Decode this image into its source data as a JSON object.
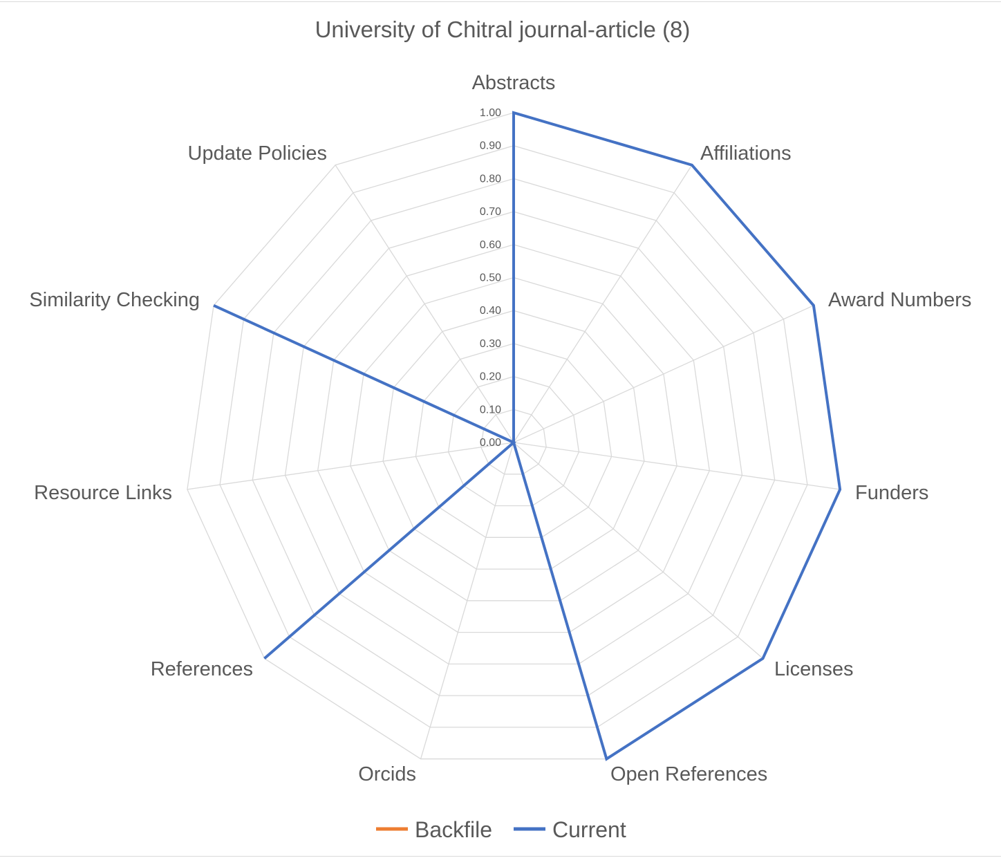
{
  "chart_data": {
    "type": "radar",
    "title": "University of Chitral journal-article (8)",
    "categories": [
      "Abstracts",
      "Affiliations",
      "Award Numbers",
      "Funders",
      "Licenses",
      "Open References",
      "Orcids",
      "References",
      "Resource Links",
      "Similarity Checking",
      "Update Policies"
    ],
    "ticks": [
      "0.00",
      "0.10",
      "0.20",
      "0.30",
      "0.40",
      "0.50",
      "0.60",
      "0.70",
      "0.80",
      "0.90",
      "1.00"
    ],
    "rlim": [
      0,
      1
    ],
    "grid": true,
    "legend_position": "bottom",
    "series": [
      {
        "name": "Backfile",
        "color": "#ED7D31",
        "values": [
          0,
          0,
          0,
          0,
          0,
          0,
          0,
          0,
          0,
          0,
          0
        ]
      },
      {
        "name": "Current",
        "color": "#4472C4",
        "values": [
          1,
          1,
          1,
          1,
          1,
          1,
          0,
          1,
          0,
          1,
          0
        ]
      }
    ]
  }
}
